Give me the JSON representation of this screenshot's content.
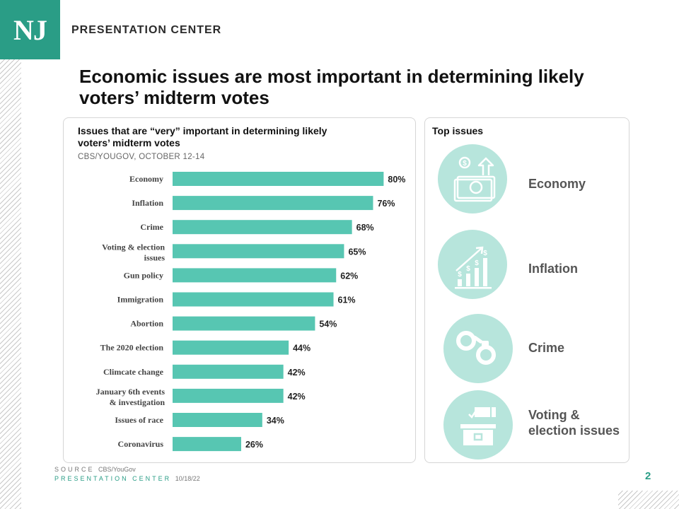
{
  "brand": {
    "logo": "NJ",
    "name": "PRESENTATION CENTER"
  },
  "headline": "Economic issues are most important in determining likely voters’ midterm votes",
  "chart_data": {
    "type": "bar",
    "orientation": "horizontal",
    "title": "Issues that are “very” important in determining likely voters’ midterm votes",
    "subtitle": "CBS/YOUGOV, OCTOBER 12-14",
    "categories": [
      "Economy",
      "Inflation",
      "Crime",
      "Voting & election issues",
      "Gun policy",
      "Immigration",
      "Abortion",
      "The 2020 election",
      "Climcate change",
      "January 6th events & investigation",
      "Issues of race",
      "Coronavirus"
    ],
    "values": [
      80,
      76,
      68,
      65,
      62,
      61,
      54,
      44,
      42,
      42,
      34,
      26
    ],
    "value_labels": [
      "80%",
      "76%",
      "68%",
      "65%",
      "62%",
      "61%",
      "54%",
      "44%",
      "42%",
      "42%",
      "34%",
      "26%"
    ],
    "xlim": [
      0,
      100
    ],
    "grid": false,
    "bar_color": "#57c6b2"
  },
  "top_issues": {
    "title": "Top issues",
    "items": [
      {
        "label": "Economy",
        "icon": "money-stack-icon"
      },
      {
        "label": "Inflation",
        "icon": "rising-dollar-chart-icon"
      },
      {
        "label": "Crime",
        "icon": "handcuffs-icon"
      },
      {
        "label": "Voting & election issues",
        "icon": "ballot-box-icon"
      }
    ]
  },
  "footer": {
    "source_label": "SOURCE",
    "source_value": "CBS/YouGov",
    "center_label": "PRESENTATION CENTER",
    "date": "10/18/22"
  },
  "page_number": "2",
  "colors": {
    "brand_teal": "#2a9d86",
    "bar": "#57c6b2",
    "icon_circle": "#b7e5dc"
  }
}
